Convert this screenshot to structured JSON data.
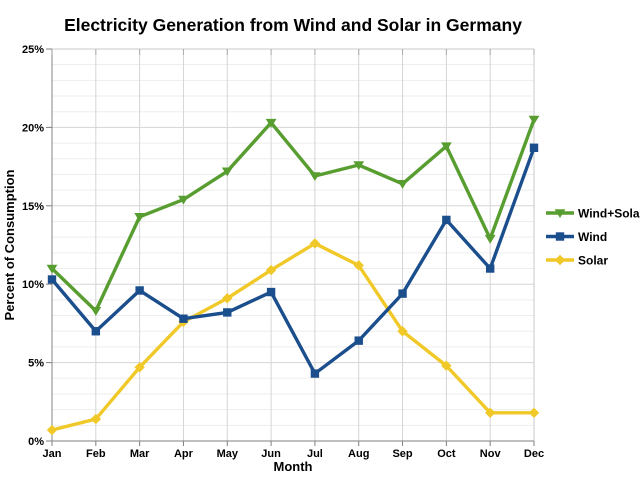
{
  "page": {
    "background": "#ffffff"
  },
  "chart_data": {
    "type": "line",
    "title": "Electricity Generation from Wind and Solar in Germany",
    "xlabel": "Month",
    "ylabel": "Percent of Consumption",
    "categories": [
      "Jan",
      "Feb",
      "Mar",
      "Apr",
      "May",
      "Jun",
      "Jul",
      "Aug",
      "Sep",
      "Oct",
      "Nov",
      "Dec"
    ],
    "ylim": [
      0,
      25
    ],
    "ytick_major": 5,
    "ytick_minor": 1,
    "ytick_labels": [
      "0%",
      "5%",
      "10%",
      "15%",
      "20%",
      "25%"
    ],
    "grid": true,
    "legend_position": "right-middle",
    "series": [
      {
        "name": "Wind+Solar",
        "color": "#589D2F",
        "marker": "triangle-down",
        "values": [
          11.0,
          8.3,
          14.3,
          15.4,
          17.2,
          20.3,
          16.9,
          17.6,
          16.4,
          18.8,
          12.9,
          20.5
        ]
      },
      {
        "name": "Wind",
        "color": "#1B4E8C",
        "marker": "square",
        "values": [
          10.3,
          7.0,
          9.6,
          7.8,
          8.2,
          9.5,
          4.3,
          6.4,
          9.4,
          14.1,
          11.0,
          18.7
        ]
      },
      {
        "name": "Solar",
        "color": "#F0C929",
        "marker": "diamond",
        "values": [
          0.7,
          1.4,
          4.7,
          7.6,
          9.1,
          10.9,
          12.6,
          11.2,
          7.0,
          4.8,
          1.8,
          1.8
        ]
      }
    ]
  },
  "style": {
    "grid_minor": "#EDEDED",
    "grid_major": "#D5D5D5",
    "axis_line": "#999999",
    "plot_border": "#C9C9C9",
    "tick": "#808080",
    "line_width": 3.4
  }
}
